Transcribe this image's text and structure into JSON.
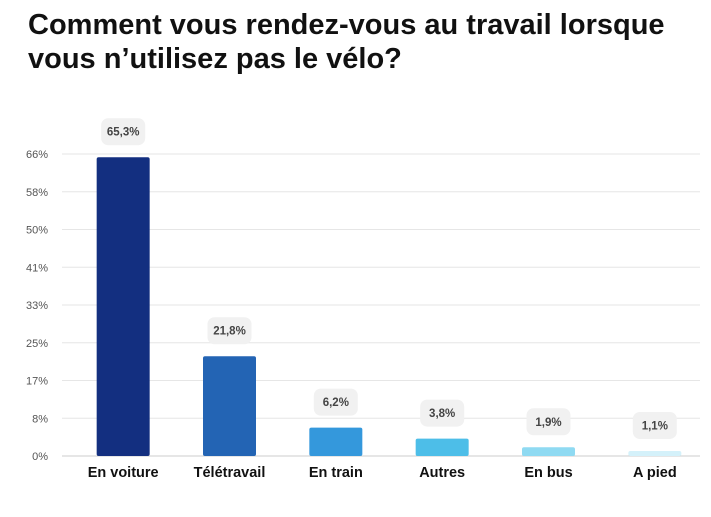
{
  "chart_data": {
    "type": "bar",
    "title": "Comment vous rendez-vous au travail lorsque vous n’utilisez pas le vélo?",
    "categories": [
      "En voiture",
      "Télétravail",
      "En train",
      "Autres",
      "En bus",
      "A pied"
    ],
    "values": [
      65.3,
      21.8,
      6.2,
      3.8,
      1.9,
      1.1
    ],
    "value_labels": [
      "65,3%",
      "21,8%",
      "6,2%",
      "3,8%",
      "1,9%",
      "1,1%"
    ],
    "y_ticks": [
      0,
      8.25,
      16.5,
      24.75,
      33,
      41.25,
      49.5,
      57.75,
      66
    ],
    "y_tick_labels": [
      "0%",
      "8%",
      "17%",
      "25%",
      "33%",
      "41%",
      "50%",
      "58%",
      "66%"
    ],
    "ylim": [
      0,
      66
    ],
    "xlabel": "",
    "ylabel": "",
    "grid": true,
    "legend": "none",
    "colors": [
      "#132f80",
      "#2364b4",
      "#3498dc",
      "#4dbee8",
      "#8fdaf2",
      "#d4f1fa"
    ]
  }
}
